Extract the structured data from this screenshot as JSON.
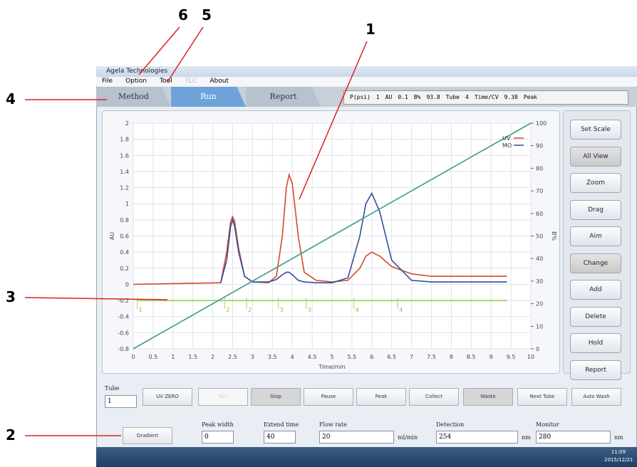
{
  "callouts": [
    "1",
    "2",
    "3",
    "4",
    "5",
    "6"
  ],
  "window": {
    "title": "Agela Technologies",
    "menu": [
      "File",
      "Option",
      "Tool",
      "TLC",
      "About"
    ],
    "tabs": [
      "Method",
      "Run",
      "Report"
    ],
    "status": [
      {
        "label": "P(psi)",
        "value": 1
      },
      {
        "label": "AU",
        "value": 0.1
      },
      {
        "label": "B%",
        "value": 93.8
      },
      {
        "label": "Tube",
        "value": 4
      },
      {
        "label": "Time/CV",
        "value": 9.38
      }
    ],
    "status_mode": "Peak"
  },
  "chart_data": {
    "type": "line",
    "xlabel": "Time/min",
    "ylabel": "AU",
    "y2label": "B%",
    "xlim": [
      0,
      10
    ],
    "xticks": [
      0,
      0.5,
      1,
      1.5,
      2,
      2.5,
      3,
      3.5,
      4,
      4.5,
      5,
      5.5,
      6,
      6.5,
      7,
      7.5,
      8,
      8.5,
      9,
      9.5,
      10
    ],
    "ylim": [
      -0.8,
      2
    ],
    "yticks": [
      -0.8,
      -0.6,
      -0.4,
      -0.2,
      0,
      0.2,
      0.4,
      0.6,
      0.8,
      1,
      1.2,
      1.4,
      1.6,
      1.8,
      2
    ],
    "y2lim": [
      0,
      100
    ],
    "y2ticks": [
      0,
      10,
      20,
      30,
      40,
      50,
      60,
      70,
      80,
      90,
      100
    ],
    "grid": true,
    "legend": "upper right",
    "series": [
      {
        "name": "UV",
        "color": "#d9472b",
        "x": [
          0,
          2.2,
          2.35,
          2.45,
          2.5,
          2.55,
          2.65,
          2.8,
          3.0,
          3.4,
          3.6,
          3.75,
          3.85,
          3.92,
          4.0,
          4.15,
          4.3,
          4.6,
          5.0,
          5.4,
          5.7,
          5.85,
          6.0,
          6.2,
          6.5,
          7.0,
          7.5,
          8.0,
          9.4
        ],
        "values": [
          0,
          0.02,
          0.4,
          0.78,
          0.84,
          0.78,
          0.45,
          0.1,
          0.03,
          0.02,
          0.1,
          0.6,
          1.2,
          1.36,
          1.25,
          0.6,
          0.15,
          0.05,
          0.03,
          0.05,
          0.2,
          0.35,
          0.4,
          0.35,
          0.22,
          0.13,
          0.1,
          0.1,
          0.1
        ]
      },
      {
        "name": "MO",
        "color": "#2e4f9c",
        "x": [
          2.2,
          2.35,
          2.45,
          2.5,
          2.55,
          2.65,
          2.8,
          3.0,
          3.4,
          3.6,
          3.75,
          3.85,
          3.92,
          4.0,
          4.15,
          4.3,
          4.6,
          5.0,
          5.4,
          5.7,
          5.85,
          6.0,
          6.2,
          6.5,
          7.0,
          7.5,
          8.0,
          9.4
        ],
        "values": [
          0.02,
          0.3,
          0.72,
          0.8,
          0.72,
          0.4,
          0.1,
          0.03,
          0.03,
          0.06,
          0.12,
          0.15,
          0.15,
          0.12,
          0.05,
          0.03,
          0.02,
          0.02,
          0.08,
          0.6,
          1.0,
          1.13,
          0.9,
          0.3,
          0.05,
          0.03,
          0.03,
          0.03
        ]
      },
      {
        "color": "#3e9a86",
        "axis": "y2",
        "x": [
          0,
          10
        ],
        "values": [
          0,
          100
        ]
      }
    ],
    "fractions": {
      "level": -0.2,
      "x": [
        0.1,
        2.3,
        2.85,
        3.65,
        4.35,
        5.55,
        6.65
      ],
      "labels": [
        "1",
        "2",
        "2",
        "3",
        "3",
        "4",
        "4"
      ]
    }
  },
  "toolbar": [
    "Set Scale",
    "All View",
    "Zoom",
    "Drag",
    "Aim",
    "Change",
    "Add",
    "Delete",
    "Hold",
    "Report"
  ],
  "controls": {
    "tube_label": "Tube",
    "tube_value": 1,
    "buttons": [
      "UV ZERO",
      "Fan",
      "Stop",
      "Pause",
      "Peak",
      "Collect",
      "Waste",
      "Next Tube",
      "Auto Wash"
    ]
  },
  "params": {
    "gradient": "Gradient",
    "fields": [
      {
        "label": "Peak width",
        "value": 0
      },
      {
        "label": "Extend time",
        "value": 40
      },
      {
        "label": "Flow rate",
        "value": 20,
        "unit": "ml/min"
      },
      {
        "label": "Detection",
        "value": 254,
        "unit": "nm"
      },
      {
        "label": "Monitor",
        "value": 280,
        "unit": "nm"
      }
    ]
  },
  "taskbar": {
    "time": "11:09",
    "date": "2015/12/21"
  }
}
